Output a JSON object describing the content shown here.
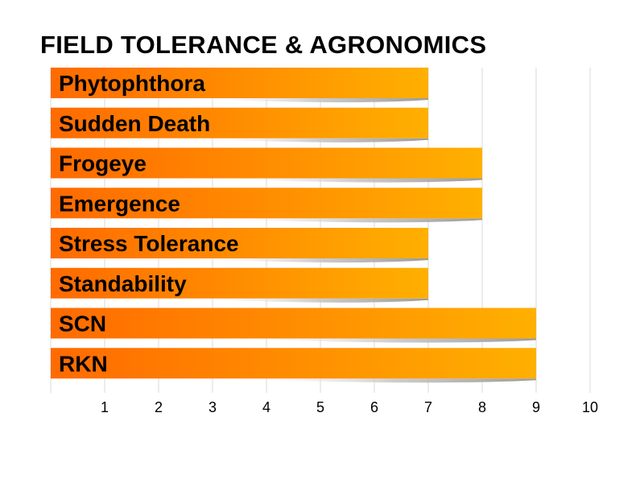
{
  "chart_data": {
    "type": "bar",
    "orientation": "horizontal",
    "title": "FIELD TOLERANCE & AGRONOMICS",
    "categories": [
      "Phytophthora",
      "Sudden Death",
      "Frogeye",
      "Emergence",
      "Stress Tolerance",
      "Standability",
      "SCN",
      "RKN"
    ],
    "values": [
      7,
      7,
      8,
      8,
      7,
      7,
      9,
      9
    ],
    "xlim": [
      0,
      10
    ],
    "xticks": [
      1,
      2,
      3,
      4,
      5,
      6,
      7,
      8,
      9,
      10
    ],
    "xlabel": "",
    "ylabel": "",
    "grid": true,
    "bar_gradient": [
      "#ff6a00",
      "#ffb000"
    ],
    "gridline_color": "#d9d9d9"
  }
}
